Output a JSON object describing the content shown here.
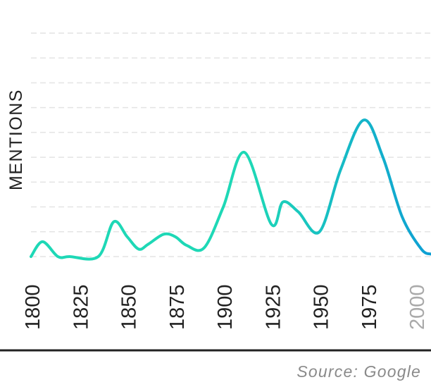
{
  "chart_data": {
    "type": "line",
    "ylabel": "MENTIONS",
    "x_ticks": [
      "1800",
      "1825",
      "1850",
      "1875",
      "1900",
      "1925",
      "1950",
      "1975",
      "2000"
    ],
    "x_tick_faded": [
      "2000"
    ],
    "xlim": [
      1800,
      2008
    ],
    "ylim": [
      0,
      9
    ],
    "y_gridlines": [
      0,
      1,
      2,
      3,
      4,
      5,
      6,
      7,
      8,
      9
    ],
    "grid": true,
    "colors": {
      "line_start": "#1ed8b6",
      "line_end": "#0e9fd4",
      "grid": "#e4e4e4",
      "axis_label": "#222222",
      "tick_label": "#222222",
      "tick_label_faded": "#aaaaaa",
      "baseline": "#222222",
      "source": "#8a8a8a"
    },
    "series": [
      {
        "x": [
          1800,
          1806,
          1814,
          1820,
          1835,
          1843,
          1850,
          1856,
          1861,
          1869,
          1875,
          1881,
          1890,
          1900,
          1911,
          1925,
          1931,
          1939,
          1950,
          1961,
          1973,
          1983,
          1993,
          2003,
          2008
        ],
        "y": [
          0.0,
          0.6,
          0.0,
          0.0,
          0.0,
          1.4,
          0.8,
          0.3,
          0.5,
          0.9,
          0.8,
          0.45,
          0.35,
          2.0,
          4.2,
          1.3,
          2.2,
          1.8,
          1.0,
          3.5,
          5.5,
          4.0,
          1.6,
          0.3,
          0.1
        ]
      }
    ]
  },
  "source": "Source: Google"
}
